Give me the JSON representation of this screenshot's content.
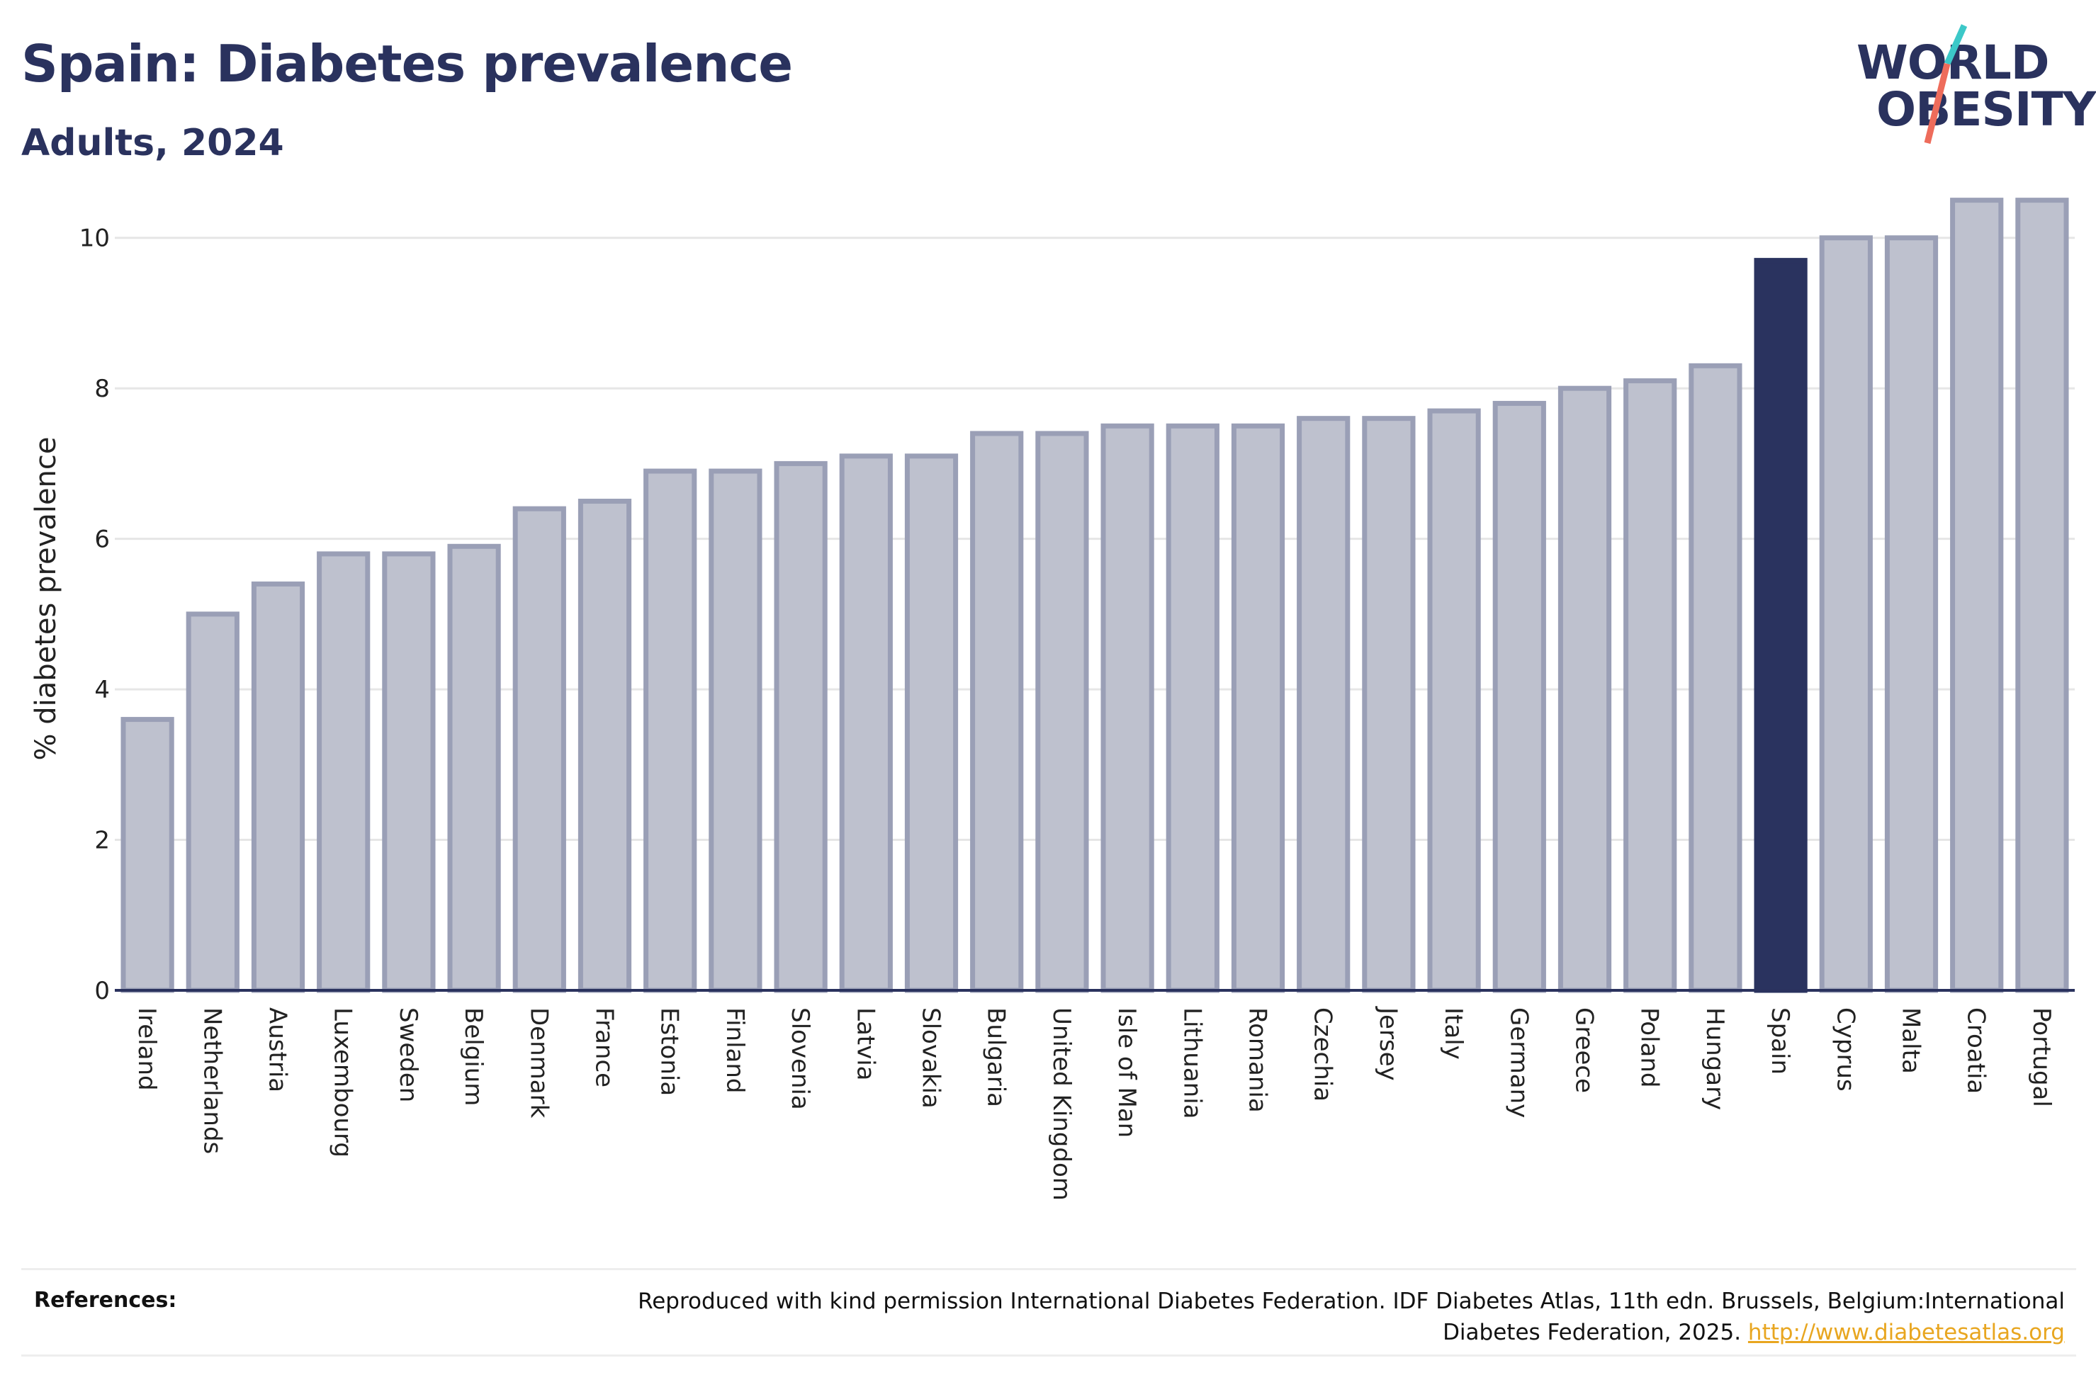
{
  "header": {
    "title": "Spain: Diabetes prevalence",
    "subtitle": "Adults, 2024"
  },
  "logo": {
    "line1": "WORLD",
    "line2": "OBESITY",
    "slash_colors": [
      "#3cc8c8",
      "#ee6c5b"
    ]
  },
  "chart_data": {
    "type": "bar",
    "ylabel": "% diabetes prevalence",
    "xlabel": "",
    "ylim": [
      0,
      10.6
    ],
    "yticks": [
      0,
      2,
      4,
      6,
      8,
      10
    ],
    "grid": true,
    "highlight": "Spain",
    "colors": {
      "bar_fill": "#bec1ce",
      "bar_edge": "#9a9fb6",
      "highlight": "#2a335f",
      "grid": "#e6e6e6",
      "axis": "#2a325e"
    },
    "categories": [
      "Ireland",
      "Netherlands",
      "Austria",
      "Luxembourg",
      "Sweden",
      "Belgium",
      "Denmark",
      "France",
      "Estonia",
      "Finland",
      "Slovenia",
      "Latvia",
      "Slovakia",
      "Bulgaria",
      "United Kingdom",
      "Isle of Man",
      "Lithuania",
      "Romania",
      "Czechia",
      "Jersey",
      "Italy",
      "Germany",
      "Greece",
      "Poland",
      "Hungary",
      "Spain",
      "Cyprus",
      "Malta",
      "Croatia",
      "Portugal"
    ],
    "values": [
      3.6,
      5.0,
      5.4,
      5.8,
      5.8,
      5.9,
      6.4,
      6.5,
      6.9,
      6.9,
      7.0,
      7.1,
      7.1,
      7.4,
      7.4,
      7.5,
      7.5,
      7.5,
      7.6,
      7.6,
      7.7,
      7.8,
      8.0,
      8.1,
      8.3,
      9.7,
      10.0,
      10.0,
      10.5,
      10.5
    ]
  },
  "references": {
    "label": "References:",
    "text": "Reproduced with kind permission International Diabetes Federation. IDF Diabetes Atlas, 11th edn. Brussels, Belgium:International Diabetes Federation, 2025.",
    "link": "http://www.diabetesatlas.org"
  }
}
